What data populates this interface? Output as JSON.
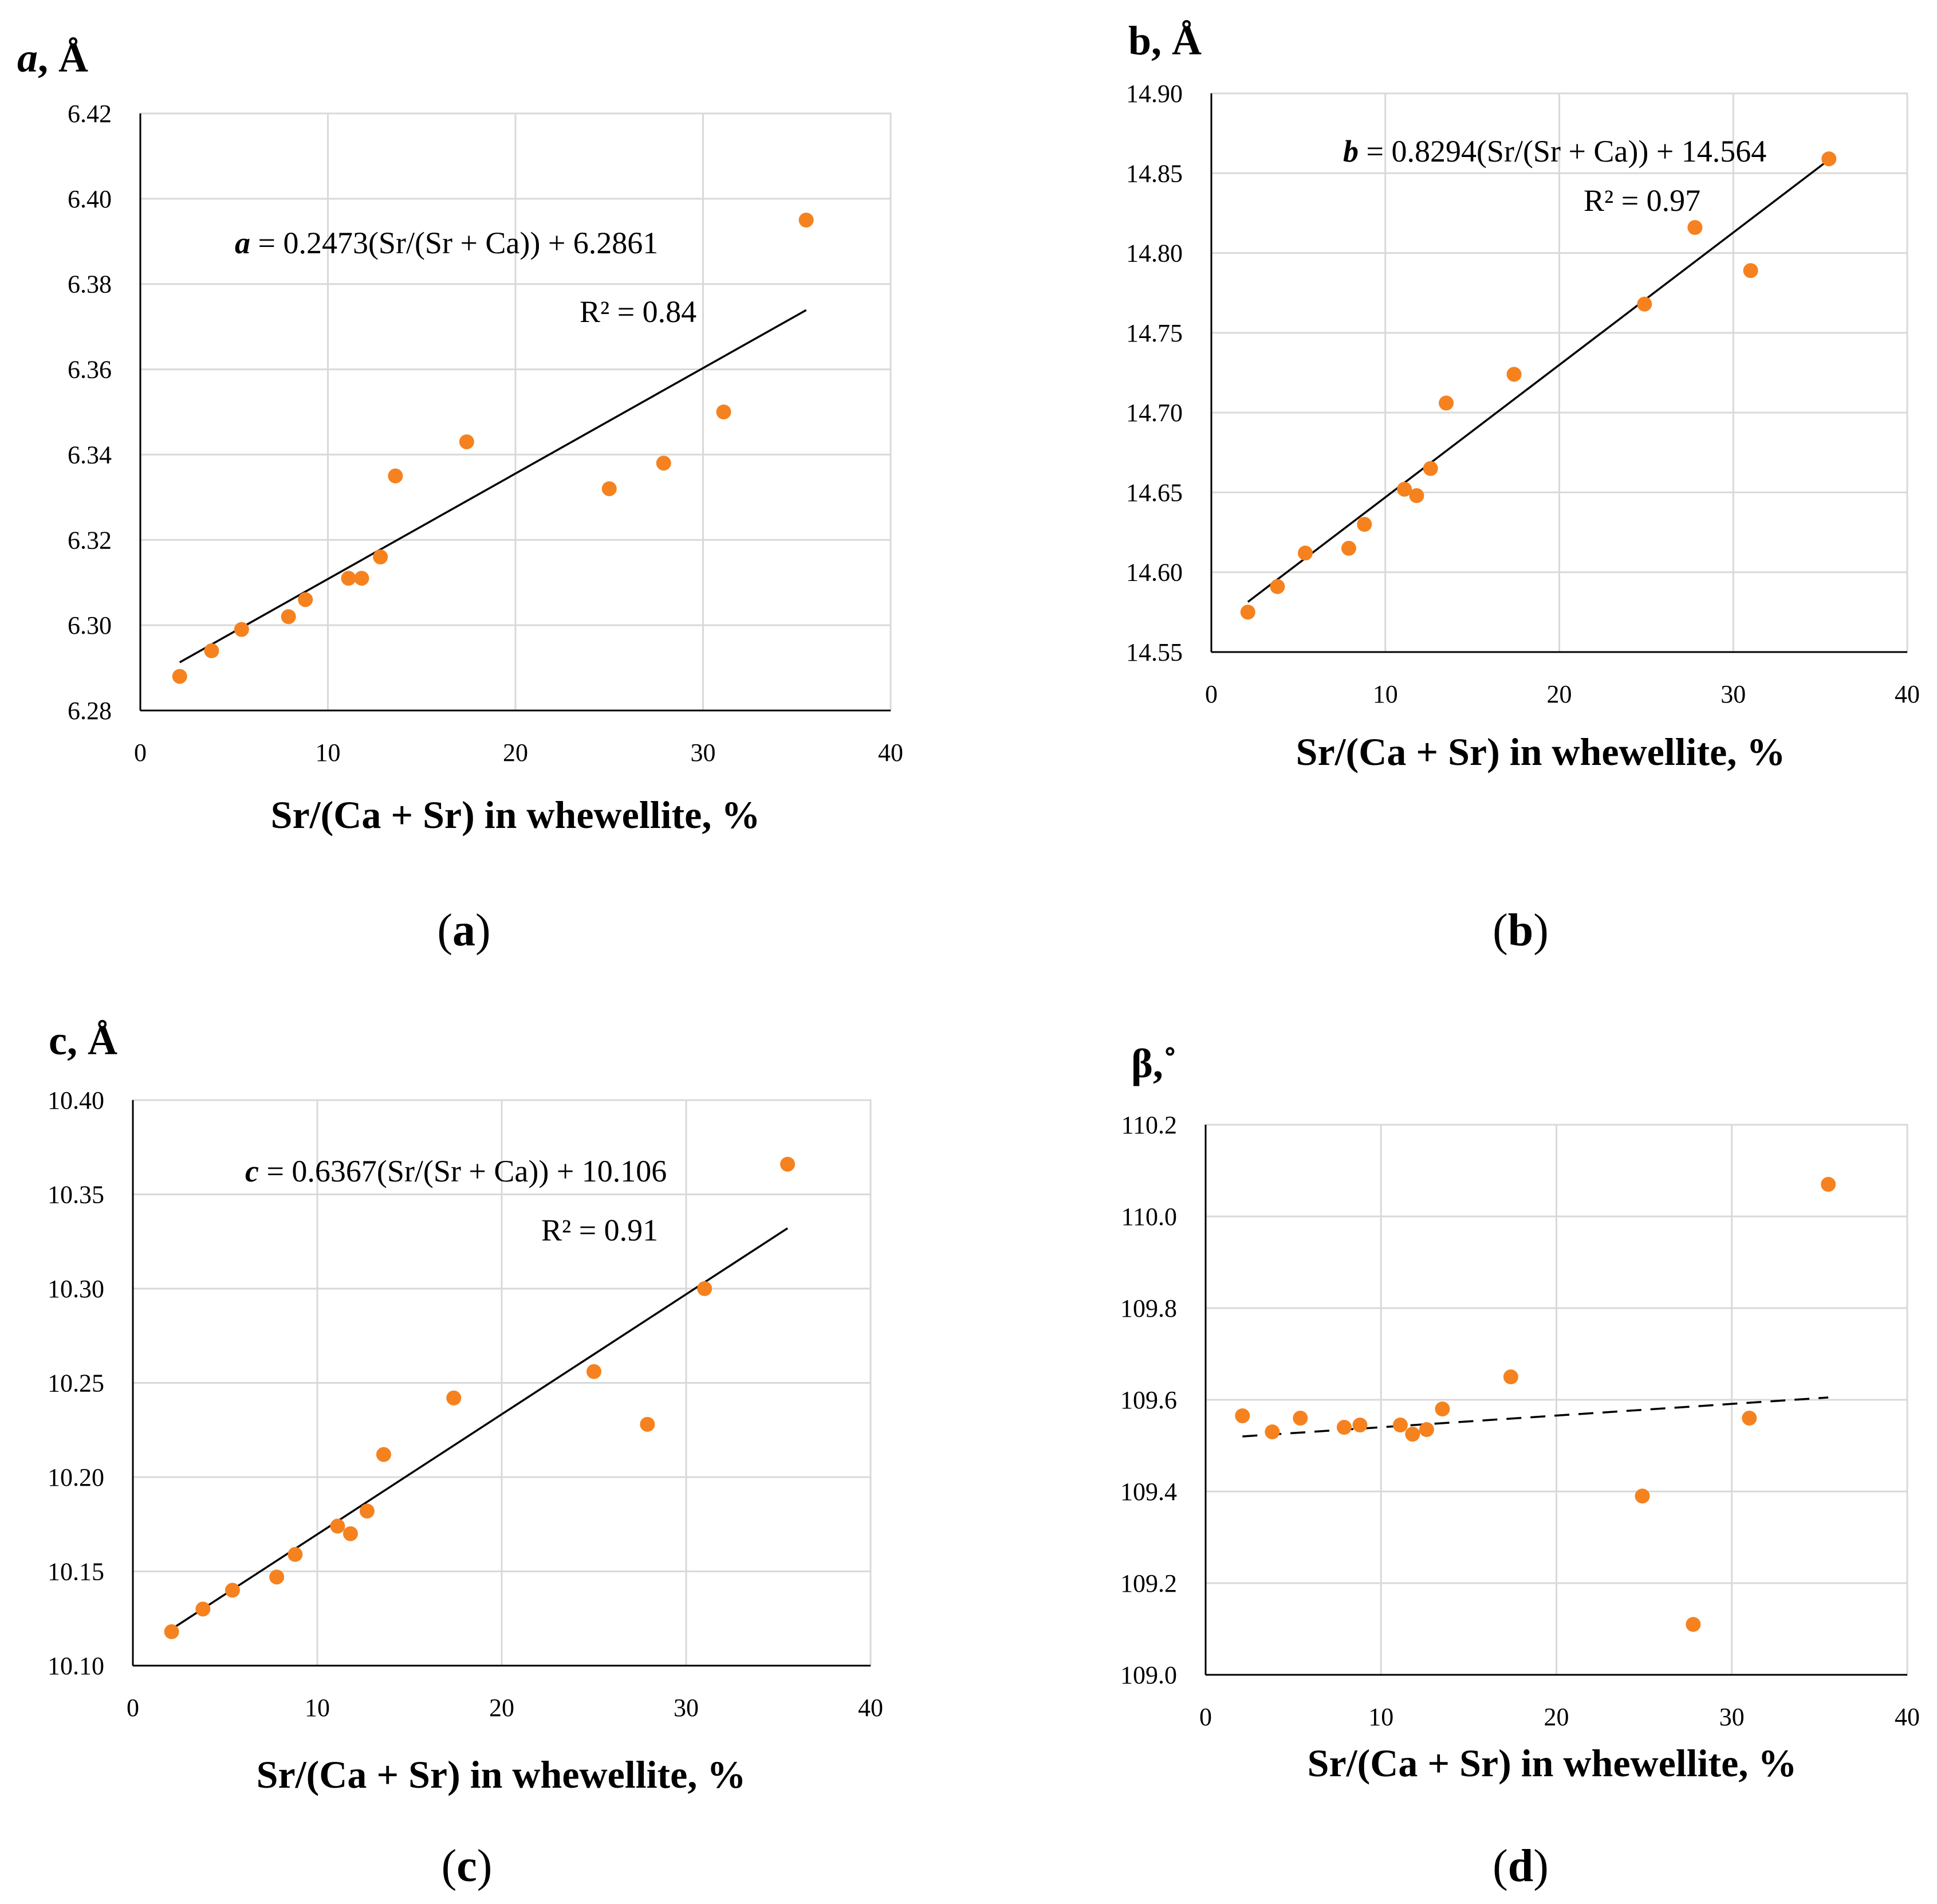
{
  "chart_data": [
    {
      "id": "a",
      "type": "scatter",
      "caption_letter": "a",
      "ylabel": {
        "var": "a",
        "rest": ", Å"
      },
      "xlabel": "Sr/(Ca + Sr) in whewellite, %",
      "xlim": [
        0,
        40
      ],
      "xticks": [
        0,
        10,
        20,
        30,
        40
      ],
      "ylim": [
        6.28,
        6.42
      ],
      "yticks": [
        6.28,
        6.3,
        6.32,
        6.34,
        6.36,
        6.38,
        6.4,
        6.42
      ],
      "ytick_decimals": 2,
      "x": [
        2.1,
        3.8,
        5.4,
        7.9,
        8.8,
        11.1,
        11.8,
        12.8,
        13.6,
        17.4,
        25.0,
        27.9,
        31.1,
        35.5
      ],
      "y": [
        6.288,
        6.294,
        6.299,
        6.302,
        6.306,
        6.311,
        6.311,
        6.316,
        6.335,
        6.343,
        6.332,
        6.338,
        6.35,
        6.395
      ],
      "trendline": {
        "x": [
          2.1,
          35.5
        ],
        "slope": 0.2473,
        "intercept": 6.2861,
        "style": "solid"
      },
      "equation": {
        "var": "a",
        "rest": " = 0.2473(Sr/(Sr + Ca)) + 6.2861"
      },
      "r2": "R² = 0.84"
    },
    {
      "id": "b",
      "type": "scatter",
      "caption_letter": "b",
      "ylabel": {
        "var": "b",
        "rest": ", Å"
      },
      "xlabel": "Sr/(Ca + Sr) in whewellite, %",
      "xlim": [
        0,
        40
      ],
      "xticks": [
        0,
        10,
        20,
        30,
        40
      ],
      "ylim": [
        14.55,
        14.9
      ],
      "yticks": [
        14.55,
        14.6,
        14.65,
        14.7,
        14.75,
        14.8,
        14.85,
        14.9
      ],
      "ytick_decimals": 2,
      "x": [
        2.1,
        3.8,
        5.4,
        7.9,
        8.8,
        11.1,
        11.8,
        12.6,
        13.5,
        17.4,
        24.9,
        27.8,
        31.0,
        35.5
      ],
      "y": [
        14.575,
        14.591,
        14.612,
        14.615,
        14.63,
        14.652,
        14.648,
        14.665,
        14.706,
        14.724,
        14.768,
        14.816,
        14.789,
        14.859
      ],
      "trendline": {
        "x": [
          2.1,
          35.5
        ],
        "slope": 0.8294,
        "intercept": 14.564,
        "style": "solid"
      },
      "equation": {
        "var": "b",
        "rest": " = 0.8294(Sr/(Sr + Ca)) + 14.564"
      },
      "r2": "R² = 0.97"
    },
    {
      "id": "c",
      "type": "scatter",
      "caption_letter": "c",
      "ylabel": {
        "var": "c",
        "rest": ", Å"
      },
      "xlabel": "Sr/(Ca + Sr) in whewellite, %",
      "xlim": [
        0,
        40
      ],
      "xticks": [
        0,
        10,
        20,
        30,
        40
      ],
      "ylim": [
        10.1,
        10.4
      ],
      "yticks": [
        10.1,
        10.15,
        10.2,
        10.25,
        10.3,
        10.35,
        10.4
      ],
      "ytick_decimals": 2,
      "x": [
        2.1,
        3.8,
        5.4,
        7.8,
        8.8,
        11.1,
        11.8,
        12.7,
        13.6,
        17.4,
        25.0,
        27.9,
        31.0,
        35.5
      ],
      "y": [
        10.118,
        10.13,
        10.14,
        10.147,
        10.159,
        10.174,
        10.17,
        10.182,
        10.212,
        10.242,
        10.256,
        10.228,
        10.3,
        10.366
      ],
      "trendline": {
        "x": [
          2.1,
          35.5
        ],
        "slope": 0.6367,
        "intercept": 10.106,
        "style": "solid"
      },
      "equation": {
        "var": "c",
        "rest": " = 0.6367(Sr/(Sr + Ca)) + 10.106"
      },
      "r2": "R² = 0.91"
    },
    {
      "id": "d",
      "type": "scatter",
      "caption_letter": "d",
      "ylabel": {
        "var": "",
        "rest": "β,˚"
      },
      "xlabel": "Sr/(Ca + Sr) in whewellite, %",
      "xlim": [
        0,
        40
      ],
      "xticks": [
        0,
        10,
        20,
        30,
        40
      ],
      "ylim": [
        109.0,
        110.2
      ],
      "yticks": [
        109.0,
        109.2,
        109.4,
        109.6,
        109.8,
        110.0,
        110.2
      ],
      "ytick_decimals": 1,
      "x": [
        2.1,
        3.8,
        5.4,
        7.9,
        8.8,
        11.1,
        11.8,
        12.6,
        13.5,
        17.4,
        24.9,
        27.8,
        31.0,
        35.5
      ],
      "y": [
        109.565,
        109.53,
        109.56,
        109.54,
        109.545,
        109.545,
        109.525,
        109.535,
        109.58,
        109.65,
        109.39,
        109.11,
        109.56,
        110.07
      ],
      "trendline": {
        "x": [
          2.1,
          35.5
        ],
        "y": [
          109.52,
          109.605
        ],
        "style": "dashed"
      }
    }
  ]
}
